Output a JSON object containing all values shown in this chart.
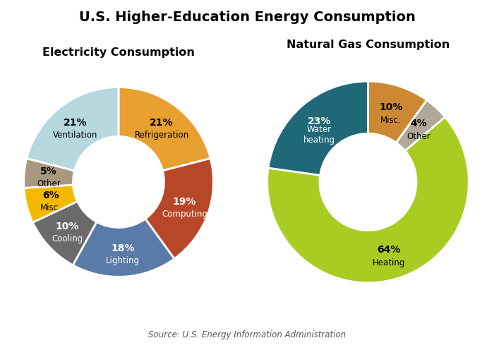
{
  "title": "U.S. Higher-Education Energy Consumption",
  "title_fontsize": 14,
  "source_text": "Source: U.S. Energy Information Administration",
  "electricity": {
    "subtitle": "Electricity Consumption",
    "values": [
      21,
      19,
      18,
      10,
      6,
      5,
      21
    ],
    "colors": [
      "#E8A030",
      "#B8472A",
      "#5A7BA8",
      "#6A6A6A",
      "#F5B800",
      "#A89880",
      "#B8D8E0"
    ],
    "pct_labels": [
      "21%",
      "19%",
      "18%",
      "10%",
      "6%",
      "5%",
      "21%"
    ],
    "sub_labels": [
      "Refrigeration",
      "Computing",
      "Lighting",
      "Cooling",
      "Misc.",
      "Other",
      "Ventilation"
    ],
    "label_colors": [
      "black",
      "black",
      "black",
      "black",
      "black",
      "black",
      "black"
    ],
    "text_colors_on_wedge": [
      "black",
      "white",
      "white",
      "white",
      "black",
      "black",
      "black"
    ]
  },
  "natural_gas": {
    "subtitle": "Natural Gas Consumption",
    "values": [
      10,
      4,
      64,
      23
    ],
    "colors": [
      "#CC8833",
      "#B0A898",
      "#AACC22",
      "#1E6878"
    ],
    "pct_labels": [
      "10%",
      "4%",
      "64%",
      "23%"
    ],
    "sub_labels": [
      "Misc.",
      "Other",
      "Heating",
      "Water\nheating"
    ],
    "text_colors_on_wedge": [
      "black",
      "black",
      "black",
      "white"
    ]
  },
  "background_color": "#FFFFFF",
  "donut_width": 0.52
}
